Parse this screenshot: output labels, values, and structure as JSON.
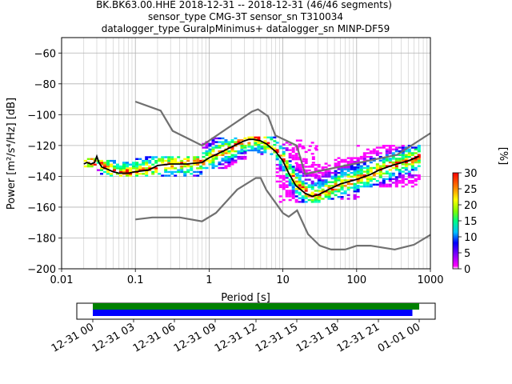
{
  "header": {
    "title_lines": [
      "BK.BK63.00.HHE   2018-12-31 -- 2018-12-31  (46/46 segments)",
      "sensor_type CMG-3T sensor_sn T310034",
      "datalogger_type GuralpMinimus+ datalogger_sn MINP-DF59"
    ]
  },
  "chart_data": {
    "type": "heatmap",
    "xlabel": "Period [s]",
    "ylabel": "Power [m²/s⁴/Hz] [dB]",
    "xscale": "log",
    "xlim": [
      0.01,
      1000
    ],
    "ylim": [
      -200,
      -50
    ],
    "grid": true,
    "x_ticks": [
      0.01,
      0.1,
      1,
      10,
      100,
      1000
    ],
    "x_tick_labels": [
      "0.01",
      "0.1",
      "1",
      "10",
      "100",
      "1000"
    ],
    "y_ticks": [
      -200,
      -180,
      -160,
      -140,
      -120,
      -100,
      -80,
      -60
    ],
    "y_tick_labels": [
      "−200",
      "−180",
      "−160",
      "−140",
      "−120",
      "−100",
      "−80",
      "−60"
    ],
    "colorbar": {
      "label": "[%]",
      "min": 0,
      "max": 30,
      "ticks": [
        0,
        5,
        10,
        15,
        20,
        25,
        30
      ],
      "tick_labels": [
        "0",
        "5",
        "10",
        "15",
        "20",
        "25",
        "30"
      ]
    },
    "noise_models": [
      {
        "name": "NHNM",
        "color": "#707070",
        "x": [
          0.1,
          0.22,
          0.32,
          0.8,
          3.8,
          4.6,
          6.3,
          7.9,
          15.4,
          20,
          354.8,
          1000
        ],
        "y": [
          -91.5,
          -97.4,
          -110.5,
          -120,
          -98,
          -96.5,
          -101,
          -113.5,
          -120,
          -138.5,
          -126,
          -112
        ]
      },
      {
        "name": "NLNM",
        "color": "#707070",
        "x": [
          0.1,
          0.17,
          0.4,
          0.8,
          1.24,
          2.4,
          4.3,
          5.0,
          6.0,
          10,
          12,
          15.6,
          21.9,
          31.6,
          45,
          70,
          101,
          154,
          328,
          600,
          1000
        ],
        "y": [
          -168,
          -166.7,
          -166.7,
          -169.2,
          -163.7,
          -148.6,
          -141.1,
          -141.1,
          -149,
          -163.8,
          -166.2,
          -162.1,
          -177.5,
          -185,
          -187.5,
          -187.5,
          -185,
          -185,
          -187.5,
          -184.4,
          -178
        ]
      }
    ],
    "mode_line": {
      "color": "#000000",
      "x": [
        0.02,
        0.022,
        0.025,
        0.028,
        0.03,
        0.032,
        0.035,
        0.04,
        0.05,
        0.06,
        0.08,
        0.1,
        0.15,
        0.2,
        0.3,
        0.5,
        0.8,
        1,
        1.5,
        2,
        3,
        3.5,
        4,
        5,
        6,
        8,
        10,
        12,
        15,
        20,
        25,
        30,
        40,
        60,
        100,
        150,
        200,
        300,
        500,
        700
      ],
      "y": [
        -132,
        -131,
        -132,
        -131,
        -127,
        -131,
        -134,
        -135,
        -137,
        -138,
        -138,
        -137,
        -136,
        -133,
        -132,
        -132,
        -131,
        -128,
        -124,
        -121,
        -117,
        -116,
        -116,
        -117,
        -119,
        -124,
        -130,
        -138,
        -146,
        -151,
        -153,
        -152,
        -149,
        -145,
        -142,
        -139,
        -136,
        -133,
        -130,
        -127
      ]
    },
    "distribution": [
      {
        "x": [
          0.02,
          0.03
        ],
        "y_range": [
          -134,
          -129
        ]
      },
      {
        "x": [
          0.03,
          0.1
        ],
        "y_range": [
          -140,
          -130
        ]
      },
      {
        "x": [
          0.1,
          0.8
        ],
        "y_range": [
          -140,
          -127
        ]
      },
      {
        "x": [
          0.8,
          3.0
        ],
        "y_range": [
          -135,
          -115
        ]
      },
      {
        "x": [
          3.0,
          8.0
        ],
        "y_range": [
          -126,
          -114
        ]
      },
      {
        "x": [
          8.0,
          30
        ],
        "y_range": [
          -157,
          -118
        ]
      },
      {
        "x": [
          15,
          30
        ],
        "y_range": [
          -140,
          -117
        ]
      },
      {
        "x": [
          30,
          100
        ],
        "y_range": [
          -155,
          -128
        ]
      },
      {
        "x": [
          100,
          700
        ],
        "y_range": [
          -147,
          -120
        ]
      }
    ]
  },
  "timeline": {
    "tick_labels": [
      "12-31 00",
      "12-31 03",
      "12-31 06",
      "12-31 09",
      "12-31 12",
      "12-31 15",
      "12-31 18",
      "12-31 21",
      "01-01 00"
    ],
    "bars": [
      {
        "color": "#008000",
        "start_hour": 0,
        "end_hour": 24.0
      },
      {
        "color": "#0000ff",
        "start_hour": 0,
        "end_hour": 23.5
      }
    ]
  }
}
